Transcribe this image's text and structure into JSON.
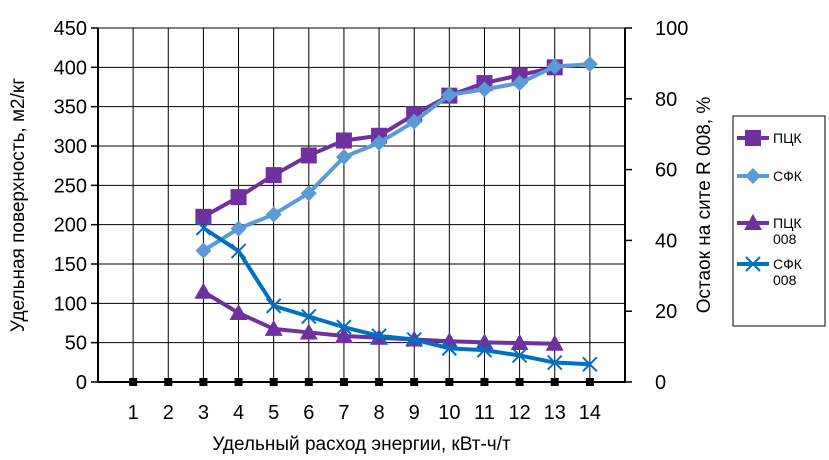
{
  "chart_data": {
    "type": "line",
    "x": [
      1,
      2,
      3,
      4,
      5,
      6,
      7,
      8,
      9,
      10,
      11,
      12,
      13,
      14
    ],
    "xlabel": "Удельный расход энергии, кВт-ч/т",
    "ylabel_left": "Удельная поверхность, м2/кг",
    "ylabel_right": "Остаок на сите R 008, %",
    "ylim_left": [
      0,
      450
    ],
    "ylim_right": [
      0,
      100
    ],
    "yticks_left": [
      "0",
      "50",
      "100",
      "150",
      "200",
      "250",
      "300",
      "350",
      "400",
      "450"
    ],
    "yticks_right": [
      "0",
      "20",
      "40",
      "60",
      "80",
      "100"
    ],
    "xticks": [
      "1",
      "2",
      "3",
      "4",
      "5",
      "6",
      "7",
      "8",
      "9",
      "10",
      "11",
      "12",
      "13",
      "14"
    ],
    "grid": true,
    "legend_position": "right",
    "series": [
      {
        "name": "ПЦК",
        "axis": "left",
        "marker": "square",
        "color": "#7030A0",
        "points": [
          [
            3,
            210
          ],
          [
            4,
            235
          ],
          [
            5,
            263
          ],
          [
            6,
            288
          ],
          [
            7,
            307
          ],
          [
            8,
            313
          ],
          [
            9,
            340
          ],
          [
            10,
            364
          ],
          [
            11,
            380
          ],
          [
            12,
            390
          ],
          [
            13,
            400
          ]
        ]
      },
      {
        "name": "СФК",
        "axis": "left",
        "marker": "diamond",
        "color": "#5B9BD5",
        "points": [
          [
            3,
            167
          ],
          [
            4,
            195
          ],
          [
            5,
            213
          ],
          [
            6,
            240
          ],
          [
            7,
            286
          ],
          [
            8,
            304
          ],
          [
            9,
            331
          ],
          [
            10,
            365
          ],
          [
            11,
            372
          ],
          [
            12,
            380
          ],
          [
            13,
            401
          ],
          [
            14,
            404
          ]
        ]
      },
      {
        "name": "ПЦК 008",
        "axis": "right",
        "marker": "triangle",
        "color": "#7030A0",
        "points": [
          [
            3,
            25.5
          ],
          [
            4,
            19.5
          ],
          [
            5,
            15.0
          ],
          [
            6,
            14.0
          ],
          [
            7,
            13.0
          ],
          [
            8,
            12.5
          ],
          [
            9,
            12.0
          ],
          [
            10,
            11.5
          ],
          [
            11,
            11.2
          ],
          [
            12,
            11.0
          ],
          [
            13,
            10.8
          ]
        ]
      },
      {
        "name": "СФК 008",
        "axis": "right",
        "marker": "x",
        "color": "#0070C0",
        "points": [
          [
            3,
            43.5
          ],
          [
            4,
            37.0
          ],
          [
            5,
            21.5
          ],
          [
            6,
            18.5
          ],
          [
            7,
            15.5
          ],
          [
            8,
            13.0
          ],
          [
            9,
            12.0
          ],
          [
            10,
            9.5
          ],
          [
            11,
            9.0
          ],
          [
            12,
            7.5
          ],
          [
            13,
            5.5
          ],
          [
            14,
            5.0
          ]
        ]
      }
    ]
  }
}
